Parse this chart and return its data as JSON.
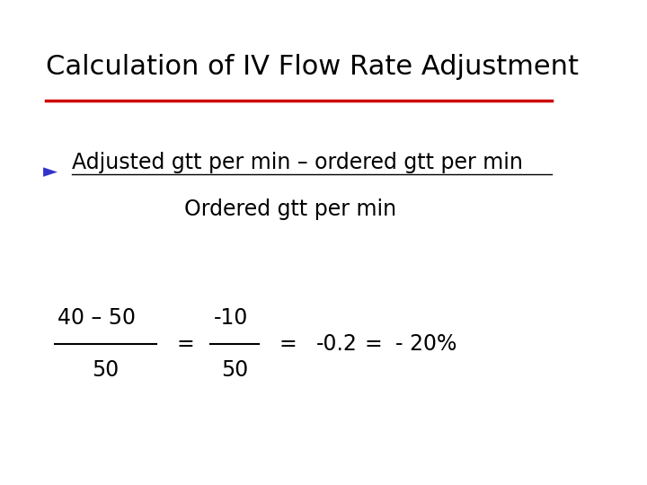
{
  "title": "Calculation of IV Flow Rate Adjustment",
  "title_color": "#000000",
  "title_underline_color": "#cc0000",
  "bg_color": "#ffffff",
  "bullet_symbol": "►",
  "bullet_color": "#3333cc",
  "bullet_line1": "Adjusted gtt per min – ordered gtt per min",
  "bullet_line2": "Ordered gtt per min",
  "fraction1_num": "40 – 50",
  "fraction1_den": "50",
  "fraction2_num": "-10",
  "fraction2_den": "50",
  "equals1": "=",
  "equals2": "=",
  "equals3": "=",
  "result1": "-0.2",
  "result2": "- 20%"
}
